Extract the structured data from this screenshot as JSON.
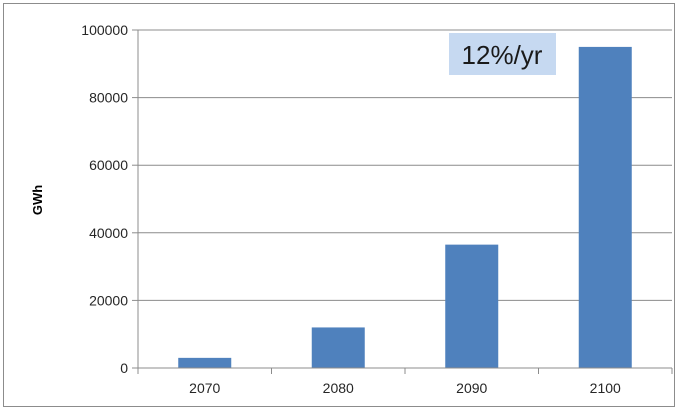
{
  "chart_data": {
    "type": "bar",
    "categories": [
      "2070",
      "2080",
      "2090",
      "2100"
    ],
    "values": [
      3000,
      12000,
      36500,
      95000
    ],
    "ylabel": "GWh",
    "xlabel": "",
    "ylim": [
      0,
      100000
    ],
    "yticks": [
      "0",
      "20000",
      "40000",
      "60000",
      "80000",
      "100000"
    ],
    "annotation": "12%/yr",
    "grid": true,
    "legend": "none",
    "colors": {
      "bar": "#4f81bd",
      "grid": "#8c8c8c",
      "annotation_bg": "#c6d9f1"
    }
  }
}
